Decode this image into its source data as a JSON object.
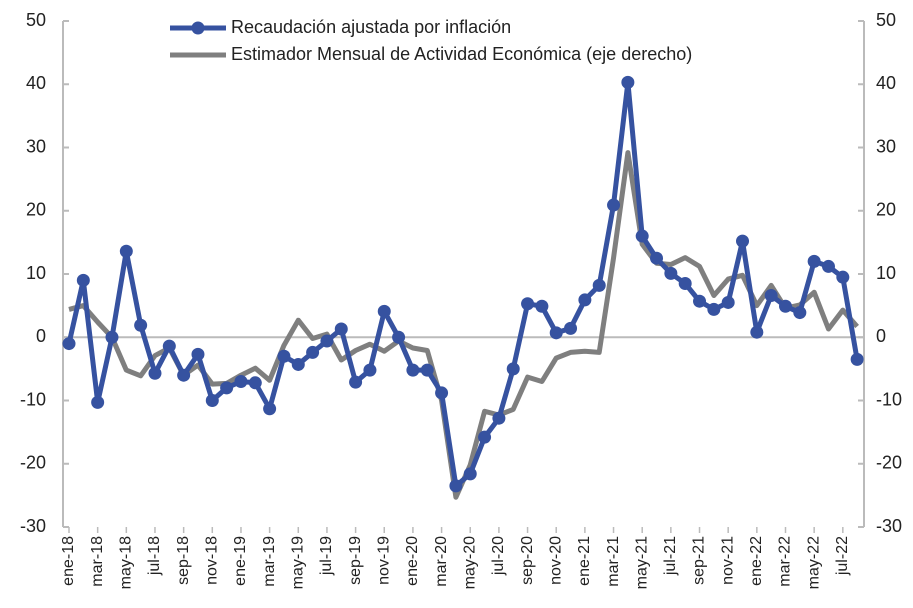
{
  "chart_data": {
    "type": "line",
    "categories": [
      "ene-18",
      null,
      "mar-18",
      null,
      "may-18",
      null,
      "jul-18",
      null,
      "sep-18",
      null,
      "nov-18",
      null,
      "ene-19",
      null,
      "mar-19",
      null,
      "may-19",
      null,
      "jul-19",
      null,
      "sep-19",
      null,
      "nov-19",
      null,
      "ene-20",
      null,
      "mar-20",
      null,
      "may-20",
      null,
      "jul-20",
      null,
      "sep-20",
      null,
      "nov-20",
      null,
      "ene-21",
      null,
      "mar-21",
      null,
      "may-21",
      null,
      "jul-21",
      null,
      "sep-21",
      null,
      "nov-21",
      null,
      "ene-22",
      null,
      "mar-22",
      null,
      "may-22",
      null,
      "jul-22",
      null
    ],
    "series": [
      {
        "name": "Recaudación ajustada por inflación",
        "color": "#3652a0",
        "values": [
          -1,
          9,
          -10.3,
          0,
          13.6,
          1.9,
          -5.7,
          -1.4,
          -6,
          -2.7,
          -10,
          -8,
          -7,
          -7.2,
          -11.3,
          -3,
          -4.3,
          -2.4,
          -0.6,
          1.3,
          -7.1,
          -5.2,
          4.1,
          0,
          -5.2,
          -5.2,
          -8.8,
          -23.5,
          -21.6,
          -15.8,
          -12.8,
          -5,
          5.3,
          4.9,
          0.7,
          1.4,
          5.9,
          8.2,
          20.9,
          40.3,
          16,
          12.5,
          10.1,
          8.5,
          5.7,
          4.4,
          5.5,
          15.2,
          0.8,
          6.6,
          4.9,
          3.9,
          12,
          11.2,
          9.5,
          -3.5
        ]
      },
      {
        "name": "Estimador Mensual de Actividad Económica (eje derecho)",
        "color": "#7f7f7f",
        "axis": "y2",
        "values": [
          4.4,
          5,
          2.4,
          0,
          -5.2,
          -6.1,
          -2.9,
          -1.7,
          -6,
          -4.4,
          -7.4,
          -7.3,
          -6,
          -4.9,
          -6.8,
          -1.3,
          2.7,
          -0.2,
          0.5,
          -3.6,
          -2.1,
          -1.1,
          -2.2,
          -0.6,
          -1.7,
          -2.1,
          -10,
          -25.3,
          -20.2,
          -11.7,
          -12.3,
          -11.4,
          -6.3,
          -7,
          -3.3,
          -2.4,
          -2.2,
          -2.4,
          12.5,
          29.2,
          14.7,
          11.7,
          11.5,
          12.6,
          11.2,
          6.6,
          9.2,
          9.8,
          5,
          8.2,
          4.6,
          5.1,
          7.1,
          1.3,
          4.3,
          1.7
        ]
      }
    ],
    "ylim": [
      -30,
      50
    ],
    "yticks": [
      -30,
      -20,
      -10,
      0,
      10,
      20,
      30,
      40,
      50
    ],
    "y2lim": [
      -30,
      50
    ],
    "y2ticks": [
      -30,
      -20,
      -10,
      0,
      10,
      20,
      30,
      40,
      50
    ],
    "legend": "top"
  }
}
